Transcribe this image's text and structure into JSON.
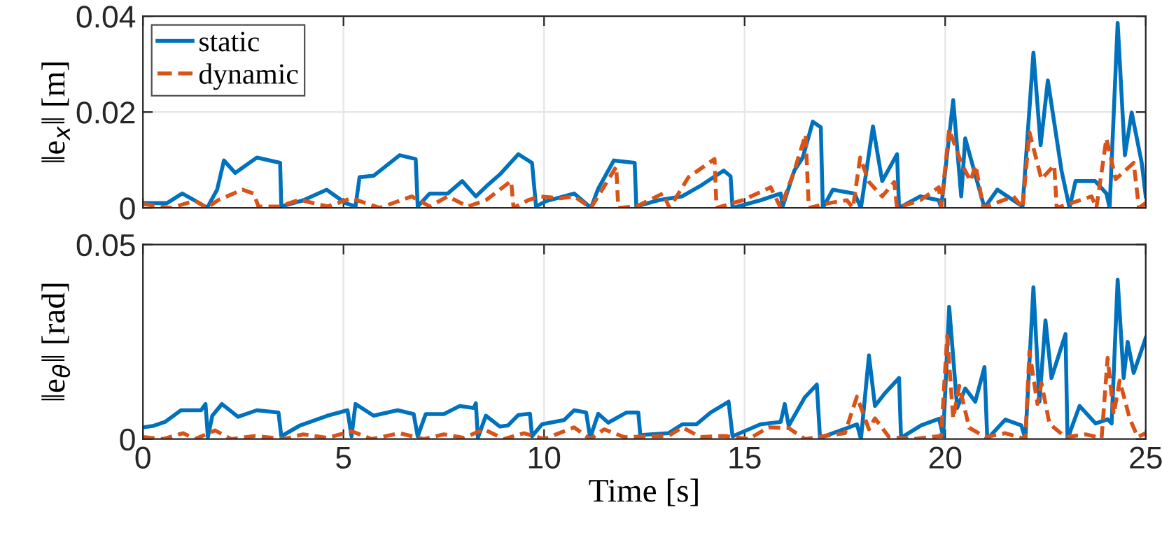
{
  "chart_data": [
    {
      "type": "line",
      "ylabel": "‖e$_{x}$‖ [m]",
      "xlim": [
        0,
        25
      ],
      "xticks": [
        0,
        5,
        10,
        15,
        20,
        25
      ],
      "ylim": [
        0,
        0.04
      ],
      "yticks": [
        0,
        0.02,
        0.04
      ],
      "grid": true,
      "legend": "top left",
      "tick_labels": "y",
      "marker": "none",
      "series": [
        {
          "name": "static",
          "color": "#0072bd",
          "line_style": "solid",
          "x": [
            0,
            0.6,
            0.98,
            1.3,
            1.6,
            1.85,
            2.02,
            2.3,
            2.84,
            3.42,
            3.45,
            4.0,
            4.58,
            5.05,
            5.3,
            5.4,
            5.75,
            6.4,
            6.8,
            6.85,
            7.15,
            7.6,
            7.96,
            8.3,
            8.6,
            8.9,
            9.36,
            9.7,
            9.8,
            10.05,
            10.75,
            11.17,
            11.35,
            11.74,
            12.26,
            12.3,
            12.85,
            13.44,
            13.9,
            14.48,
            14.65,
            14.7,
            15.4,
            15.9,
            15.95,
            16.24,
            16.45,
            16.7,
            16.9,
            16.95,
            17.2,
            17.74,
            17.9,
            18.2,
            18.43,
            18.8,
            18.85,
            19.38,
            19.84,
            19.9,
            20.2,
            20.4,
            20.5,
            20.78,
            20.98,
            21.3,
            21.93,
            22.2,
            22.38,
            22.56,
            22.9,
            23.1,
            23.25,
            23.74,
            24.02,
            24.1,
            24.3,
            24.48,
            24.65,
            24.9,
            25
          ],
          "values": [
            0.001,
            0.001,
            0.003,
            0.0015,
            0,
            0.0038,
            0.0099,
            0.0073,
            0.0105,
            0.0094,
            0.0003,
            0.0016,
            0.0038,
            0.001,
            0.0003,
            0.0064,
            0.0067,
            0.011,
            0.0102,
            0.0003,
            0.003,
            0.003,
            0.0056,
            0.0024,
            0.0048,
            0.007,
            0.0112,
            0.0094,
            0.0003,
            0.0014,
            0.003,
            0,
            0.004,
            0.0099,
            0.0094,
            0.0003,
            0.0016,
            0.0024,
            0.0046,
            0.0078,
            0.0066,
            0,
            0.0016,
            0.003,
            0.0003,
            0.0078,
            0.0105,
            0.018,
            0.0168,
            0,
            0.0038,
            0.003,
            0,
            0.017,
            0.0056,
            0.0112,
            0,
            0.0024,
            0.0016,
            0,
            0.0225,
            0.0024,
            0.0145,
            0.006,
            0,
            0.0038,
            0.0003,
            0.0324,
            0.0131,
            0.0266,
            0.0078,
            0,
            0.0056,
            0.0056,
            0.003,
            0,
            0.0386,
            0.011,
            0.0199,
            0.0094,
            0.0024
          ]
        },
        {
          "name": "dynamic",
          "color": "#d95319",
          "line_style": "dashed",
          "x": [
            0,
            0.7,
            1.3,
            1.6,
            1.87,
            2.48,
            2.76,
            2.88,
            3.42,
            3.9,
            4.6,
            5.2,
            5.9,
            6.7,
            7.15,
            7.6,
            8.1,
            8.55,
            9.18,
            9.24,
            9.6,
            9.9,
            10.4,
            10.75,
            11.17,
            11.8,
            11.85,
            12.3,
            12.96,
            13.13,
            13.6,
            14.25,
            14.3,
            14.95,
            15.65,
            15.9,
            16.24,
            16.52,
            16.6,
            17.1,
            17.55,
            17.7,
            17.88,
            18.1,
            18.43,
            18.73,
            18.8,
            19.38,
            19.84,
            19.9,
            20.1,
            20.4,
            20.63,
            20.76,
            20.95,
            21.7,
            21.93,
            22.1,
            22.4,
            22.72,
            22.78,
            23.65,
            23.77,
            24.02,
            24.25,
            24.7,
            24.83,
            25
          ],
          "values": [
            0.0008,
            0,
            0.0015,
            0,
            0.0016,
            0.0038,
            0.003,
            0.0003,
            0.0003,
            0.0017,
            0.0003,
            0.002,
            0,
            0.0024,
            0.0003,
            0.0024,
            0.0003,
            0.0016,
            0.0056,
            0,
            0.0016,
            0.0024,
            0.002,
            0.0024,
            0,
            0.0086,
            0,
            0.0003,
            0.003,
            0,
            0.0064,
            0.0102,
            0,
            0.0016,
            0.0043,
            0,
            0.0078,
            0.0153,
            0,
            0.001,
            0.0016,
            0,
            0.0105,
            0.0054,
            0.0024,
            0.0054,
            0,
            0.0016,
            0.0043,
            0.0003,
            0.0164,
            0.0094,
            0.0056,
            0.0089,
            0,
            0.0024,
            0,
            0.0158,
            0.006,
            0.0089,
            0,
            0.0024,
            0,
            0.0145,
            0.006,
            0.0094,
            0,
            0.001
          ]
        }
      ]
    },
    {
      "type": "line",
      "xlabel": "Time [s]",
      "ylabel": "‖e$_{θ}$‖ [rad]",
      "xlim": [
        0,
        25
      ],
      "xticks": [
        0,
        5,
        10,
        15,
        20,
        25
      ],
      "ylim": [
        0,
        0.05
      ],
      "yticks": [
        0,
        0.05
      ],
      "grid": true,
      "marker": "none",
      "series": [
        {
          "color": "#0072bd",
          "line_style": "solid",
          "x": [
            0,
            0.27,
            0.55,
            0.95,
            1.45,
            1.56,
            1.62,
            1.73,
            1.97,
            2.37,
            2.84,
            3.38,
            3.45,
            3.9,
            4.6,
            5.1,
            5.2,
            5.3,
            5.75,
            6.35,
            6.75,
            6.85,
            7.05,
            7.5,
            7.9,
            8.25,
            8.3,
            8.35,
            8.55,
            8.9,
            9.1,
            9.36,
            9.65,
            9.7,
            9.95,
            10.5,
            10.75,
            11.05,
            11.15,
            11.35,
            11.6,
            12.05,
            12.35,
            12.4,
            13.1,
            13.45,
            13.8,
            14.15,
            14.6,
            14.7,
            15.4,
            15.9,
            16.0,
            16.1,
            16.5,
            16.8,
            16.88,
            17.55,
            17.8,
            17.9,
            18.1,
            18.25,
            18.5,
            18.85,
            18.9,
            19.4,
            19.85,
            19.95,
            20.1,
            20.3,
            20.5,
            20.75,
            20.98,
            21.05,
            21.5,
            21.9,
            22.0,
            22.2,
            22.35,
            22.5,
            22.65,
            23.0,
            23.05,
            23.35,
            23.75,
            24.05,
            24.15,
            24.3,
            24.45,
            24.55,
            24.7,
            25.0
          ],
          "values": [
            0.003,
            0.0034,
            0.0044,
            0.0074,
            0.0074,
            0.009,
            0.0005,
            0.006,
            0.009,
            0.0057,
            0.0074,
            0.0068,
            0.0007,
            0.0034,
            0.006,
            0.0074,
            0.0007,
            0.009,
            0.006,
            0.0074,
            0.0064,
            0.0007,
            0.0064,
            0.0064,
            0.0085,
            0.008,
            0.0092,
            0.0003,
            0.006,
            0.0032,
            0.0035,
            0.0062,
            0.0065,
            0.0007,
            0.0038,
            0.0049,
            0.0074,
            0.0068,
            0.0003,
            0.0065,
            0.0042,
            0.0068,
            0.0068,
            0.001,
            0.0015,
            0.0038,
            0.0038,
            0.0068,
            0.0096,
            0.0007,
            0.0038,
            0.0044,
            0.009,
            0.0034,
            0.0107,
            0.014,
            0.0003,
            0.0028,
            0.0038,
            0,
            0.0215,
            0.0085,
            0.0118,
            0.0157,
            0.0003,
            0.0035,
            0.0052,
            0.0007,
            0.034,
            0.008,
            0.013,
            0.0096,
            0.0185,
            0,
            0.005,
            0.0035,
            0,
            0.039,
            0.0096,
            0.0305,
            0.0157,
            0.027,
            0,
            0.0085,
            0.004,
            0.0051,
            0.004,
            0.041,
            0.0157,
            0.025,
            0.017,
            0.026
          ]
        },
        {
          "color": "#d95319",
          "line_style": "dashed",
          "x": [
            0,
            0.5,
            1.0,
            1.3,
            1.8,
            2.2,
            2.8,
            3.5,
            4.0,
            4.6,
            5.2,
            5.7,
            6.4,
            7.0,
            7.5,
            8.0,
            8.5,
            9.0,
            9.5,
            10.0,
            10.75,
            11.15,
            11.5,
            12.0,
            13.1,
            13.45,
            13.9,
            14.5,
            15.1,
            15.6,
            16.1,
            16.5,
            17.0,
            17.5,
            17.8,
            18.1,
            18.25,
            18.6,
            19.2,
            19.9,
            20.05,
            20.2,
            20.35,
            20.6,
            21.0,
            21.5,
            22.0,
            22.1,
            22.3,
            22.4,
            22.6,
            23.0,
            23.5,
            23.9,
            24.05,
            24.2,
            24.35,
            24.6,
            24.8,
            25
          ],
          "values": [
            0.0005,
            0,
            0.0015,
            0,
            0.0022,
            0,
            0.0008,
            0,
            0.0012,
            0.0003,
            0.002,
            0,
            0.0015,
            0,
            0.0012,
            0.0003,
            0.0025,
            0,
            0.0015,
            0,
            0.003,
            0,
            0.0025,
            0.0005,
            0.0008,
            0.003,
            0.0005,
            0.0008,
            0,
            0.003,
            0.0028,
            0,
            0.0008,
            0.0015,
            0.0109,
            0.0025,
            0.0053,
            0.0005,
            0,
            0.0008,
            0.0265,
            0.0053,
            0.0137,
            0.0029,
            0.0005,
            0.0015,
            0,
            0.0226,
            0.009,
            0.0144,
            0.0039,
            0.0005,
            0.0012,
            0.0003,
            0.0209,
            0.0063,
            0.015,
            0.0053,
            0.0005,
            0.0015
          ]
        }
      ]
    }
  ]
}
